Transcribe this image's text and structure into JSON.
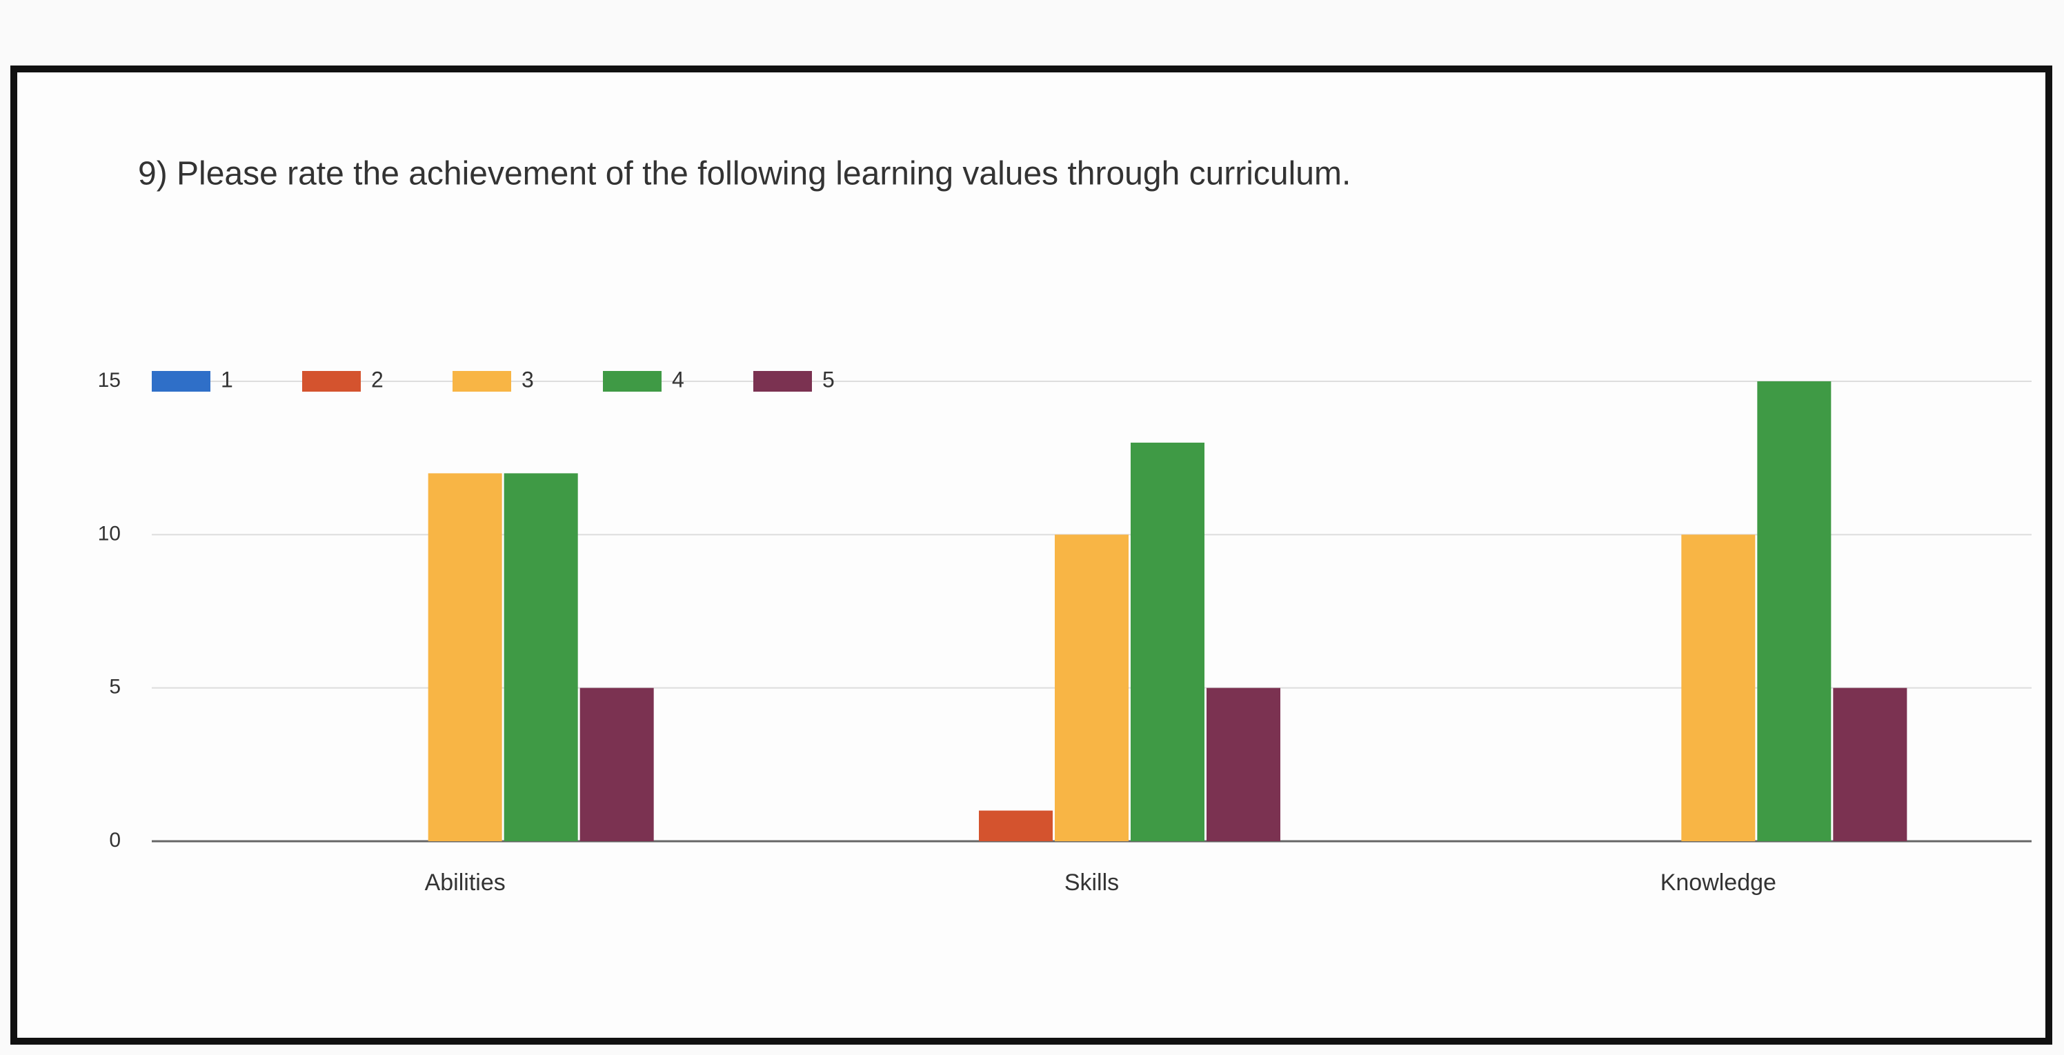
{
  "chart_data": {
    "type": "bar",
    "title": "9) Please rate the achievement of the following learning values through curriculum.",
    "categories": [
      "Abilities",
      "Skills",
      "Knowledge"
    ],
    "series": [
      {
        "name": "1",
        "color": "#2f6fc8",
        "values": [
          0,
          0,
          0
        ]
      },
      {
        "name": "2",
        "color": "#d4532e",
        "values": [
          0,
          1,
          0
        ]
      },
      {
        "name": "3",
        "color": "#f8b545",
        "values": [
          12,
          10,
          10
        ]
      },
      {
        "name": "4",
        "color": "#3f9a45",
        "values": [
          12,
          13,
          15
        ]
      },
      {
        "name": "5",
        "color": "#7b3251",
        "values": [
          5,
          5,
          5
        ]
      }
    ],
    "ylim": [
      0,
      15
    ],
    "yticks": [
      0,
      5,
      10,
      15
    ],
    "grid": true,
    "legend": "top"
  }
}
